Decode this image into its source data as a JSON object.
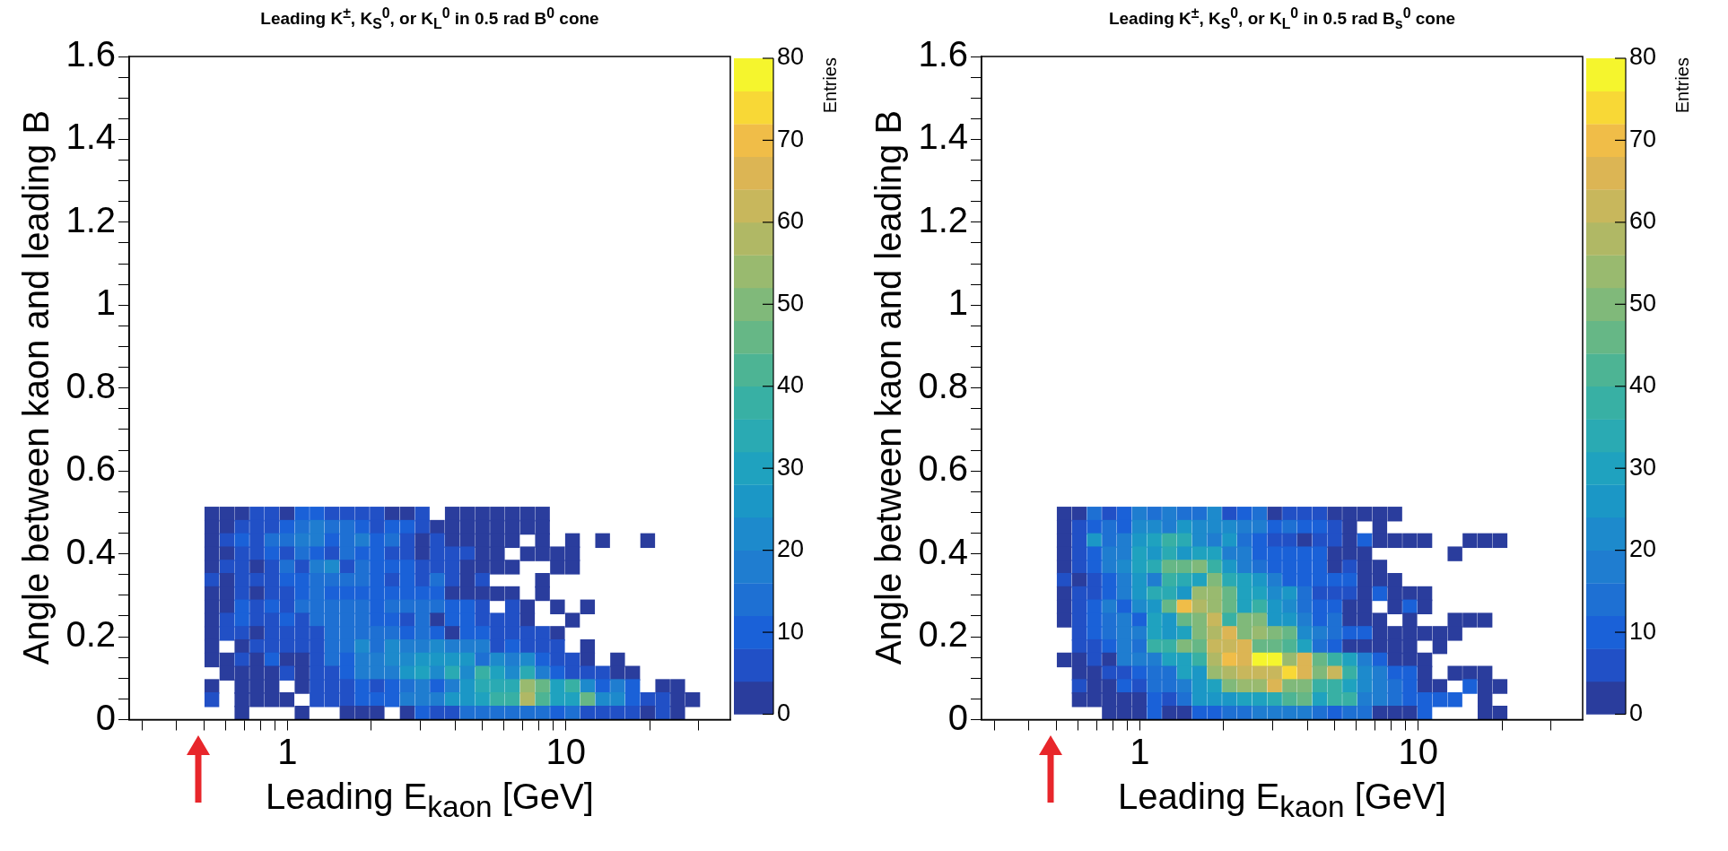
{
  "chart_data": [
    {
      "type": "scatter",
      "marker": "square",
      "title": "Leading K$^{±}$, K$_{S}$$^{0}$, or K$_{L}$$^{0}$ in 0.5 rad B$^{0}$ cone",
      "xlabel": "Leading E$_{kaon}$ [GeV]",
      "ylabel": "Angle between kaon and leading B",
      "clabel": "Entries",
      "log": "x",
      "xlim": [
        0.27,
        39
      ],
      "xticks": [
        {
          "value": 0.3,
          "label": null
        },
        {
          "value": 0.4,
          "label": null
        },
        {
          "value": 0.5,
          "label": null
        },
        {
          "value": 0.6,
          "label": null
        },
        {
          "value": 0.7,
          "label": null
        },
        {
          "value": 0.8,
          "label": null
        },
        {
          "value": 0.9,
          "label": null
        },
        {
          "value": 1,
          "label": "1"
        },
        {
          "value": 2,
          "label": null
        },
        {
          "value": 3,
          "label": null
        },
        {
          "value": 4,
          "label": null
        },
        {
          "value": 5,
          "label": null
        },
        {
          "value": 6,
          "label": null
        },
        {
          "value": 7,
          "label": null
        },
        {
          "value": 8,
          "label": null
        },
        {
          "value": 9,
          "label": null
        },
        {
          "value": 10,
          "label": "10"
        },
        {
          "value": 20,
          "label": null
        },
        {
          "value": 30,
          "label": null
        }
      ],
      "ylim": [
        0,
        1.6
      ],
      "yticks": [
        0,
        {
          "value": 0.05,
          "label": null
        },
        {
          "value": 0.1,
          "label": null
        },
        {
          "value": 0.15,
          "label": null
        },
        0.2,
        {
          "value": 0.25,
          "label": null
        },
        {
          "value": 0.3,
          "label": null
        },
        {
          "value": 0.35,
          "label": null
        },
        0.4,
        {
          "value": 0.45,
          "label": null
        },
        {
          "value": 0.5,
          "label": null
        },
        {
          "value": 0.55,
          "label": null
        },
        0.6,
        {
          "value": 0.65,
          "label": null
        },
        {
          "value": 0.7,
          "label": null
        },
        {
          "value": 0.75,
          "label": null
        },
        0.8,
        {
          "value": 0.85,
          "label": null
        },
        {
          "value": 0.9,
          "label": null
        },
        {
          "value": 0.95,
          "label": null
        },
        1,
        {
          "value": 1.05,
          "label": null
        },
        {
          "value": 1.1,
          "label": null
        },
        {
          "value": 1.15,
          "label": null
        },
        1.2,
        {
          "value": 1.25,
          "label": null
        },
        {
          "value": 1.3,
          "label": null
        },
        {
          "value": 1.35,
          "label": null
        },
        1.4,
        {
          "value": 1.45,
          "label": null
        },
        {
          "value": 1.5,
          "label": null
        },
        {
          "value": 1.55,
          "label": null
        },
        1.6
      ],
      "clim": [
        0,
        80
      ],
      "cticks": [
        0,
        10,
        20,
        30,
        40,
        50,
        60,
        70,
        80
      ],
      "x": [
        0.535,
        0.606,
        0.686,
        0.777,
        0.88,
        0.996,
        1.128,
        1.277,
        1.446,
        1.637,
        1.854,
        2.1,
        2.378,
        2.693,
        3.05,
        3.91,
        4.428,
        5.014,
        5.678,
        6.43,
        7.281,
        8.245,
        0.535,
        0.606,
        0.686,
        0.777,
        0.88,
        0.996,
        1.128,
        1.277,
        1.446,
        1.637,
        1.854,
        2.1,
        2.378,
        2.693,
        3.05,
        3.453,
        3.91,
        4.428,
        5.014,
        5.678,
        6.43,
        7.281,
        8.245,
        0.535,
        0.606,
        0.686,
        0.777,
        0.88,
        0.996,
        1.128,
        1.277,
        1.446,
        1.637,
        1.854,
        2.1,
        2.378,
        2.693,
        3.05,
        3.453,
        3.91,
        4.428,
        5.014,
        5.678,
        6.43,
        8.245,
        10.57,
        13.56,
        19.69,
        0.535,
        0.606,
        0.686,
        0.777,
        0.88,
        0.996,
        1.128,
        1.277,
        1.446,
        1.637,
        1.854,
        2.1,
        2.378,
        2.693,
        3.05,
        3.453,
        3.91,
        4.428,
        5.014,
        5.678,
        7.281,
        8.245,
        9.336,
        10.57,
        0.535,
        0.606,
        0.686,
        0.777,
        0.88,
        0.996,
        1.128,
        1.277,
        1.446,
        1.637,
        1.854,
        2.1,
        2.378,
        2.693,
        3.05,
        3.453,
        3.91,
        4.428,
        5.014,
        5.678,
        6.43,
        9.336,
        10.57,
        0.535,
        0.606,
        0.686,
        0.777,
        0.88,
        0.996,
        1.128,
        1.277,
        1.446,
        1.637,
        1.854,
        2.1,
        2.378,
        2.693,
        3.05,
        3.453,
        3.91,
        4.428,
        5.014,
        8.245,
        0.535,
        0.606,
        0.686,
        0.777,
        0.88,
        0.996,
        1.128,
        1.277,
        1.446,
        1.637,
        1.854,
        2.1,
        2.378,
        2.693,
        3.05,
        3.453,
        3.91,
        4.428,
        5.014,
        5.678,
        6.43,
        8.245,
        0.535,
        0.606,
        0.686,
        0.777,
        0.88,
        0.996,
        1.128,
        1.277,
        1.446,
        1.637,
        1.854,
        2.1,
        2.378,
        2.693,
        3.05,
        3.453,
        3.91,
        4.428,
        5.014,
        6.43,
        7.281,
        9.336,
        11.97,
        0.535,
        0.606,
        0.686,
        0.777,
        0.88,
        0.996,
        1.128,
        1.277,
        1.446,
        1.637,
        1.854,
        2.1,
        2.378,
        2.693,
        3.05,
        3.453,
        3.91,
        4.428,
        5.014,
        5.678,
        6.43,
        7.281,
        10.57,
        0.535,
        0.606,
        0.686,
        0.777,
        0.88,
        0.996,
        1.128,
        1.277,
        1.446,
        1.637,
        1.854,
        2.1,
        2.378,
        2.693,
        3.05,
        3.453,
        3.91,
        4.428,
        5.014,
        5.678,
        6.43,
        7.281,
        8.245,
        9.336,
        0.535,
        0.686,
        0.777,
        0.88,
        0.996,
        1.128,
        1.277,
        1.446,
        1.637,
        1.854,
        2.1,
        2.378,
        2.693,
        3.05,
        3.453,
        3.91,
        4.428,
        5.014,
        5.678,
        6.43,
        7.281,
        8.245,
        9.336,
        11.97,
        0.535,
        0.606,
        0.686,
        0.777,
        0.88,
        0.996,
        1.128,
        1.277,
        1.446,
        1.637,
        1.854,
        2.1,
        2.378,
        2.693,
        3.05,
        3.453,
        3.91,
        4.428,
        5.014,
        5.678,
        6.43,
        7.281,
        8.245,
        9.336,
        10.57,
        11.97,
        15.35,
        0.606,
        0.686,
        0.777,
        0.88,
        0.996,
        1.128,
        1.277,
        1.446,
        1.637,
        1.854,
        2.1,
        2.378,
        2.693,
        3.05,
        3.453,
        3.91,
        4.428,
        5.014,
        5.678,
        6.43,
        7.281,
        8.245,
        9.336,
        10.57,
        11.97,
        13.56,
        15.35,
        17.39,
        0.535,
        0.686,
        0.777,
        0.88,
        1.128,
        1.277,
        1.446,
        1.637,
        1.854,
        2.1,
        2.378,
        2.693,
        3.05,
        3.453,
        3.91,
        4.428,
        5.014,
        5.678,
        6.43,
        7.281,
        8.245,
        9.336,
        10.57,
        11.97,
        13.56,
        15.35,
        17.39,
        22.29,
        25.24,
        0.535,
        0.686,
        0.777,
        0.88,
        0.996,
        1.277,
        1.446,
        1.637,
        1.854,
        2.1,
        2.378,
        2.693,
        3.05,
        3.453,
        3.91,
        4.428,
        5.014,
        5.678,
        6.43,
        7.281,
        8.245,
        9.336,
        10.57,
        11.97,
        13.56,
        15.35,
        17.39,
        19.69,
        22.29,
        25.24,
        28.58,
        0.686,
        1.128,
        1.637,
        1.854,
        2.1,
        2.693,
        3.05,
        3.453,
        3.91,
        4.428,
        5.014,
        5.678,
        6.43,
        7.281,
        8.245,
        9.336,
        10.57,
        11.97,
        13.56,
        15.35,
        17.39,
        19.69,
        22.29,
        25.24
      ],
      "values": [
        0.496,
        0.496,
        0.496,
        0.496,
        0.496,
        0.496,
        0.496,
        0.496,
        0.496,
        0.496,
        0.496,
        0.496,
        0.496,
        0.496,
        0.496,
        0.496,
        0.496,
        0.496,
        0.496,
        0.496,
        0.496,
        0.496,
        0.464,
        0.464,
        0.464,
        0.464,
        0.464,
        0.464,
        0.464,
        0.464,
        0.464,
        0.464,
        0.464,
        0.464,
        0.464,
        0.464,
        0.464,
        0.464,
        0.464,
        0.464,
        0.464,
        0.464,
        0.464,
        0.464,
        0.464,
        0.432,
        0.432,
        0.432,
        0.432,
        0.432,
        0.432,
        0.432,
        0.432,
        0.432,
        0.432,
        0.432,
        0.432,
        0.432,
        0.432,
        0.432,
        0.432,
        0.432,
        0.432,
        0.432,
        0.432,
        0.432,
        0.432,
        0.432,
        0.432,
        0.432,
        0.4,
        0.4,
        0.4,
        0.4,
        0.4,
        0.4,
        0.4,
        0.4,
        0.4,
        0.4,
        0.4,
        0.4,
        0.4,
        0.4,
        0.4,
        0.4,
        0.4,
        0.4,
        0.4,
        0.4,
        0.4,
        0.4,
        0.4,
        0.4,
        0.368,
        0.368,
        0.368,
        0.368,
        0.368,
        0.368,
        0.368,
        0.368,
        0.368,
        0.368,
        0.368,
        0.368,
        0.368,
        0.368,
        0.368,
        0.368,
        0.368,
        0.368,
        0.368,
        0.368,
        0.368,
        0.368,
        0.368,
        0.336,
        0.336,
        0.336,
        0.336,
        0.336,
        0.336,
        0.336,
        0.336,
        0.336,
        0.336,
        0.336,
        0.336,
        0.336,
        0.336,
        0.336,
        0.336,
        0.336,
        0.336,
        0.336,
        0.336,
        0.304,
        0.304,
        0.304,
        0.304,
        0.304,
        0.304,
        0.304,
        0.304,
        0.304,
        0.304,
        0.304,
        0.304,
        0.304,
        0.304,
        0.304,
        0.304,
        0.304,
        0.304,
        0.304,
        0.304,
        0.304,
        0.304,
        0.272,
        0.272,
        0.272,
        0.272,
        0.272,
        0.272,
        0.272,
        0.272,
        0.272,
        0.272,
        0.272,
        0.272,
        0.272,
        0.272,
        0.272,
        0.272,
        0.272,
        0.272,
        0.272,
        0.272,
        0.272,
        0.272,
        0.272,
        0.24,
        0.24,
        0.24,
        0.24,
        0.24,
        0.24,
        0.24,
        0.24,
        0.24,
        0.24,
        0.24,
        0.24,
        0.24,
        0.24,
        0.24,
        0.24,
        0.24,
        0.24,
        0.24,
        0.24,
        0.24,
        0.24,
        0.24,
        0.208,
        0.208,
        0.208,
        0.208,
        0.208,
        0.208,
        0.208,
        0.208,
        0.208,
        0.208,
        0.208,
        0.208,
        0.208,
        0.208,
        0.208,
        0.208,
        0.208,
        0.208,
        0.208,
        0.208,
        0.208,
        0.208,
        0.208,
        0.208,
        0.176,
        0.176,
        0.176,
        0.176,
        0.176,
        0.176,
        0.176,
        0.176,
        0.176,
        0.176,
        0.176,
        0.176,
        0.176,
        0.176,
        0.176,
        0.176,
        0.176,
        0.176,
        0.176,
        0.176,
        0.176,
        0.176,
        0.176,
        0.176,
        0.144,
        0.144,
        0.144,
        0.144,
        0.144,
        0.144,
        0.144,
        0.144,
        0.144,
        0.144,
        0.144,
        0.144,
        0.144,
        0.144,
        0.144,
        0.144,
        0.144,
        0.144,
        0.144,
        0.144,
        0.144,
        0.144,
        0.144,
        0.144,
        0.144,
        0.144,
        0.144,
        0.112,
        0.112,
        0.112,
        0.112,
        0.112,
        0.112,
        0.112,
        0.112,
        0.112,
        0.112,
        0.112,
        0.112,
        0.112,
        0.112,
        0.112,
        0.112,
        0.112,
        0.112,
        0.112,
        0.112,
        0.112,
        0.112,
        0.112,
        0.112,
        0.112,
        0.112,
        0.112,
        0.112,
        0.08,
        0.08,
        0.08,
        0.08,
        0.08,
        0.08,
        0.08,
        0.08,
        0.08,
        0.08,
        0.08,
        0.08,
        0.08,
        0.08,
        0.08,
        0.08,
        0.08,
        0.08,
        0.08,
        0.08,
        0.08,
        0.08,
        0.08,
        0.08,
        0.08,
        0.08,
        0.08,
        0.08,
        0.08,
        0.048,
        0.048,
        0.048,
        0.048,
        0.048,
        0.048,
        0.048,
        0.048,
        0.048,
        0.048,
        0.048,
        0.048,
        0.048,
        0.048,
        0.048,
        0.048,
        0.048,
        0.048,
        0.048,
        0.048,
        0.048,
        0.048,
        0.048,
        0.048,
        0.048,
        0.048,
        0.048,
        0.048,
        0.048,
        0.048,
        0.048,
        0.016,
        0.016,
        0.016,
        0.016,
        0.016,
        0.016,
        0.016,
        0.016,
        0.016,
        0.016,
        0.016,
        0.016,
        0.016,
        0.016,
        0.016,
        0.016,
        0.016,
        0.016,
        0.016,
        0.016,
        0.016,
        0.016,
        0.016,
        0.016
      ],
      "cvalues": [
        2,
        2,
        2,
        6,
        6,
        2,
        11,
        11,
        7,
        7,
        7,
        7,
        2,
        2,
        6,
        2,
        2,
        2,
        2,
        2,
        2,
        2,
        2,
        2,
        6,
        6,
        6,
        10,
        14,
        17,
        14,
        14,
        10,
        6,
        11,
        11,
        6,
        2,
        2,
        2,
        2,
        2,
        2,
        2,
        2,
        2,
        6,
        10,
        6,
        15,
        15,
        17,
        17,
        10,
        15,
        18,
        10,
        14,
        6,
        2,
        6,
        2,
        2,
        2,
        2,
        2,
        2,
        2,
        2,
        2,
        2,
        2,
        6,
        6,
        10,
        6,
        14,
        10,
        6,
        14,
        10,
        10,
        6,
        6,
        2,
        6,
        6,
        6,
        2,
        2,
        2,
        2,
        2,
        2,
        2,
        6,
        6,
        2,
        6,
        14,
        6,
        18,
        22,
        6,
        15,
        10,
        10,
        10,
        6,
        6,
        6,
        2,
        2,
        2,
        2,
        2,
        2,
        6,
        2,
        6,
        6,
        6,
        10,
        10,
        13,
        13,
        14,
        14,
        10,
        6,
        10,
        6,
        14,
        6,
        2,
        6,
        2,
        2,
        2,
        6,
        2,
        6,
        6,
        10,
        14,
        8,
        8,
        10,
        10,
        10,
        10,
        10,
        10,
        2,
        2,
        2,
        2,
        2,
        2,
        2,
        2,
        10,
        6,
        10,
        6,
        14,
        14,
        15,
        15,
        15,
        10,
        13,
        13,
        13,
        13,
        10,
        8,
        6,
        6,
        2,
        2,
        2,
        2,
        6,
        10,
        6,
        6,
        10,
        6,
        14,
        15,
        15,
        15,
        11,
        11,
        6,
        14,
        2,
        10,
        10,
        6,
        6,
        6,
        2,
        2,
        2,
        6,
        6,
        2,
        6,
        6,
        6,
        6,
        14,
        14,
        15,
        15,
        15,
        11,
        14,
        10,
        2,
        8,
        8,
        6,
        6,
        6,
        6,
        2,
        2,
        2,
        6,
        6,
        6,
        6,
        6,
        15,
        15,
        22,
        15,
        20,
        17,
        17,
        20,
        17,
        16,
        16,
        6,
        10,
        6,
        6,
        6,
        2,
        2,
        2,
        6,
        2,
        10,
        2,
        2,
        6,
        14,
        10,
        16,
        16,
        20,
        20,
        27,
        27,
        27,
        25,
        14,
        22,
        19,
        20,
        11,
        6,
        6,
        2,
        2,
        2,
        2,
        2,
        2,
        6,
        2,
        6,
        6,
        10,
        16,
        16,
        16,
        24,
        28,
        20,
        34,
        20,
        38,
        30,
        20,
        32,
        19,
        10,
        6,
        6,
        6,
        2,
        2,
        2,
        2,
        2,
        2,
        2,
        6,
        6,
        6,
        10,
        7,
        11,
        14,
        18,
        10,
        18,
        24,
        34,
        34,
        34,
        52,
        47,
        28,
        38,
        20,
        8,
        16,
        8,
        2,
        2,
        6,
        2,
        2,
        2,
        2,
        6,
        6,
        6,
        8,
        10,
        8,
        16,
        16,
        18,
        24,
        24,
        28,
        36,
        38,
        58,
        42,
        30,
        28,
        46,
        22,
        22,
        10,
        6,
        6,
        2,
        2,
        2,
        2,
        2,
        2,
        2,
        2,
        8,
        6,
        6,
        12,
        12,
        13,
        15,
        15,
        12,
        10,
        12,
        6,
        6,
        6,
        6,
        2,
        6,
        2
      ]
    },
    {
      "type": "scatter",
      "marker": "square",
      "title": "Leading K$^{±}$, K$_{S}$$^{0}$, or K$_{L}$$^{0}$ in 0.5 rad B$_{s}$$^{0}$ cone",
      "xlabel": "Leading E$_{kaon}$ [GeV]",
      "ylabel": "Angle between kaon and leading B",
      "clabel": "Entries",
      "log": "x",
      "xlim": [
        0.27,
        39
      ],
      "xticks": [
        {
          "value": 0.3,
          "label": null
        },
        {
          "value": 0.4,
          "label": null
        },
        {
          "value": 0.5,
          "label": null
        },
        {
          "value": 0.6,
          "label": null
        },
        {
          "value": 0.7,
          "label": null
        },
        {
          "value": 0.8,
          "label": null
        },
        {
          "value": 0.9,
          "label": null
        },
        {
          "value": 1,
          "label": "1"
        },
        {
          "value": 2,
          "label": null
        },
        {
          "value": 3,
          "label": null
        },
        {
          "value": 4,
          "label": null
        },
        {
          "value": 5,
          "label": null
        },
        {
          "value": 6,
          "label": null
        },
        {
          "value": 7,
          "label": null
        },
        {
          "value": 8,
          "label": null
        },
        {
          "value": 9,
          "label": null
        },
        {
          "value": 10,
          "label": "10"
        },
        {
          "value": 20,
          "label": null
        },
        {
          "value": 30,
          "label": null
        }
      ],
      "ylim": [
        0,
        1.6
      ],
      "yticks": [
        0,
        {
          "value": 0.05,
          "label": null
        },
        {
          "value": 0.1,
          "label": null
        },
        {
          "value": 0.15,
          "label": null
        },
        0.2,
        {
          "value": 0.25,
          "label": null
        },
        {
          "value": 0.3,
          "label": null
        },
        {
          "value": 0.35,
          "label": null
        },
        0.4,
        {
          "value": 0.45,
          "label": null
        },
        {
          "value": 0.5,
          "label": null
        },
        {
          "value": 0.55,
          "label": null
        },
        0.6,
        {
          "value": 0.65,
          "label": null
        },
        {
          "value": 0.7,
          "label": null
        },
        {
          "value": 0.75,
          "label": null
        },
        0.8,
        {
          "value": 0.85,
          "label": null
        },
        {
          "value": 0.9,
          "label": null
        },
        {
          "value": 0.95,
          "label": null
        },
        1,
        {
          "value": 1.05,
          "label": null
        },
        {
          "value": 1.1,
          "label": null
        },
        {
          "value": 1.15,
          "label": null
        },
        1.2,
        {
          "value": 1.25,
          "label": null
        },
        {
          "value": 1.3,
          "label": null
        },
        {
          "value": 1.35,
          "label": null
        },
        1.4,
        {
          "value": 1.45,
          "label": null
        },
        {
          "value": 1.5,
          "label": null
        },
        {
          "value": 1.55,
          "label": null
        },
        1.6
      ],
      "clim": [
        0,
        80
      ],
      "cticks": [
        0,
        10,
        20,
        30,
        40,
        50,
        60,
        70,
        80
      ],
      "x": [
        0.535,
        0.606,
        0.686,
        0.777,
        0.88,
        0.996,
        1.128,
        1.277,
        1.446,
        1.637,
        1.854,
        2.1,
        2.378,
        2.693,
        3.05,
        3.453,
        3.91,
        4.428,
        5.014,
        5.678,
        6.43,
        7.281,
        8.245,
        0.535,
        0.606,
        0.686,
        0.777,
        0.88,
        0.996,
        1.128,
        1.277,
        1.446,
        1.637,
        1.854,
        2.1,
        2.378,
        2.693,
        3.05,
        3.453,
        3.91,
        4.428,
        5.014,
        5.678,
        7.281,
        0.535,
        0.606,
        0.686,
        0.777,
        0.88,
        0.996,
        1.128,
        1.277,
        1.446,
        1.637,
        1.854,
        2.1,
        2.378,
        2.693,
        3.05,
        3.453,
        3.91,
        4.428,
        5.014,
        5.678,
        6.43,
        7.281,
        8.245,
        9.336,
        10.57,
        15.35,
        17.39,
        19.69,
        0.535,
        0.606,
        0.686,
        0.777,
        0.88,
        0.996,
        1.128,
        1.277,
        1.446,
        1.637,
        1.854,
        2.1,
        2.378,
        2.693,
        3.05,
        3.453,
        3.91,
        4.428,
        5.014,
        5.678,
        6.43,
        13.56,
        0.535,
        0.606,
        0.686,
        0.777,
        0.88,
        0.996,
        1.128,
        1.277,
        1.446,
        1.637,
        1.854,
        2.1,
        2.378,
        2.693,
        3.05,
        3.453,
        3.91,
        4.428,
        5.014,
        5.678,
        6.43,
        7.281,
        0.535,
        0.606,
        0.686,
        0.777,
        0.88,
        0.996,
        1.128,
        1.277,
        1.446,
        1.637,
        1.854,
        2.1,
        2.378,
        2.693,
        3.05,
        3.453,
        3.91,
        4.428,
        5.014,
        5.678,
        6.43,
        7.281,
        8.245,
        0.535,
        0.606,
        0.686,
        0.777,
        0.88,
        0.996,
        1.128,
        1.277,
        1.446,
        1.637,
        1.854,
        2.1,
        2.378,
        2.693,
        3.05,
        3.453,
        3.91,
        4.428,
        5.014,
        5.678,
        6.43,
        7.281,
        8.245,
        9.336,
        10.57,
        0.535,
        0.606,
        0.686,
        0.777,
        0.88,
        0.996,
        1.128,
        1.277,
        1.446,
        1.637,
        1.854,
        2.1,
        2.378,
        2.693,
        3.05,
        3.453,
        3.91,
        4.428,
        5.014,
        5.678,
        6.43,
        8.245,
        9.336,
        10.57,
        0.535,
        0.606,
        0.686,
        0.777,
        0.88,
        0.996,
        1.128,
        1.277,
        1.446,
        1.637,
        1.854,
        2.1,
        2.378,
        2.693,
        3.05,
        3.453,
        3.91,
        4.428,
        5.014,
        5.678,
        6.43,
        7.281,
        9.336,
        13.56,
        15.35,
        17.39,
        0.606,
        0.686,
        0.777,
        0.88,
        0.996,
        1.128,
        1.277,
        1.446,
        1.637,
        1.854,
        2.1,
        2.378,
        2.693,
        3.05,
        3.453,
        3.91,
        4.428,
        5.014,
        5.678,
        6.43,
        7.281,
        8.245,
        9.336,
        10.57,
        11.97,
        13.56,
        0.606,
        0.686,
        0.777,
        0.88,
        0.996,
        1.128,
        1.277,
        1.446,
        1.637,
        1.854,
        2.1,
        2.378,
        2.693,
        3.05,
        3.453,
        3.91,
        4.428,
        5.014,
        5.678,
        6.43,
        7.281,
        8.245,
        9.336,
        11.97,
        0.535,
        0.606,
        0.686,
        0.777,
        0.88,
        0.996,
        1.128,
        1.277,
        1.446,
        1.637,
        1.854,
        2.1,
        2.378,
        2.693,
        3.05,
        3.453,
        3.91,
        4.428,
        5.014,
        5.678,
        6.43,
        7.281,
        8.245,
        9.336,
        10.57,
        0.606,
        0.686,
        0.777,
        0.88,
        0.996,
        1.128,
        1.277,
        1.446,
        1.637,
        1.854,
        2.1,
        2.378,
        2.693,
        3.05,
        3.453,
        3.91,
        4.428,
        5.014,
        5.678,
        6.43,
        7.281,
        8.245,
        9.336,
        10.57,
        13.56,
        15.35,
        17.39,
        0.606,
        0.686,
        0.777,
        0.88,
        0.996,
        1.128,
        1.277,
        1.446,
        1.637,
        1.854,
        2.1,
        2.378,
        2.693,
        3.05,
        3.453,
        3.91,
        4.428,
        5.014,
        5.678,
        6.43,
        7.281,
        8.245,
        9.336,
        10.57,
        11.97,
        15.35,
        17.39,
        19.69,
        0.606,
        0.686,
        0.777,
        0.88,
        0.996,
        1.128,
        1.277,
        1.446,
        1.637,
        1.854,
        2.1,
        2.378,
        2.693,
        3.05,
        3.453,
        3.91,
        4.428,
        5.014,
        5.678,
        6.43,
        7.281,
        8.245,
        9.336,
        10.57,
        11.97,
        13.56,
        17.39,
        0.777,
        0.88,
        0.996,
        1.128,
        1.277,
        1.446,
        1.637,
        1.854,
        2.1,
        2.378,
        2.693,
        3.05,
        3.453,
        3.91,
        4.428,
        5.014,
        5.678,
        6.43,
        7.281,
        8.245,
        9.336,
        10.57,
        17.39,
        19.69
      ],
      "values": [
        0.496,
        0.496,
        0.496,
        0.496,
        0.496,
        0.496,
        0.496,
        0.496,
        0.496,
        0.496,
        0.496,
        0.496,
        0.496,
        0.496,
        0.496,
        0.496,
        0.496,
        0.496,
        0.496,
        0.496,
        0.496,
        0.496,
        0.496,
        0.464,
        0.464,
        0.464,
        0.464,
        0.464,
        0.464,
        0.464,
        0.464,
        0.464,
        0.464,
        0.464,
        0.464,
        0.464,
        0.464,
        0.464,
        0.464,
        0.464,
        0.464,
        0.464,
        0.464,
        0.464,
        0.432,
        0.432,
        0.432,
        0.432,
        0.432,
        0.432,
        0.432,
        0.432,
        0.432,
        0.432,
        0.432,
        0.432,
        0.432,
        0.432,
        0.432,
        0.432,
        0.432,
        0.432,
        0.432,
        0.432,
        0.432,
        0.432,
        0.432,
        0.432,
        0.432,
        0.432,
        0.432,
        0.432,
        0.4,
        0.4,
        0.4,
        0.4,
        0.4,
        0.4,
        0.4,
        0.4,
        0.4,
        0.4,
        0.4,
        0.4,
        0.4,
        0.4,
        0.4,
        0.4,
        0.4,
        0.4,
        0.4,
        0.4,
        0.4,
        0.4,
        0.368,
        0.368,
        0.368,
        0.368,
        0.368,
        0.368,
        0.368,
        0.368,
        0.368,
        0.368,
        0.368,
        0.368,
        0.368,
        0.368,
        0.368,
        0.368,
        0.368,
        0.368,
        0.368,
        0.368,
        0.368,
        0.368,
        0.336,
        0.336,
        0.336,
        0.336,
        0.336,
        0.336,
        0.336,
        0.336,
        0.336,
        0.336,
        0.336,
        0.336,
        0.336,
        0.336,
        0.336,
        0.336,
        0.336,
        0.336,
        0.336,
        0.336,
        0.336,
        0.336,
        0.336,
        0.304,
        0.304,
        0.304,
        0.304,
        0.304,
        0.304,
        0.304,
        0.304,
        0.304,
        0.304,
        0.304,
        0.304,
        0.304,
        0.304,
        0.304,
        0.304,
        0.304,
        0.304,
        0.304,
        0.304,
        0.304,
        0.304,
        0.304,
        0.304,
        0.304,
        0.272,
        0.272,
        0.272,
        0.272,
        0.272,
        0.272,
        0.272,
        0.272,
        0.272,
        0.272,
        0.272,
        0.272,
        0.272,
        0.272,
        0.272,
        0.272,
        0.272,
        0.272,
        0.272,
        0.272,
        0.272,
        0.272,
        0.272,
        0.272,
        0.24,
        0.24,
        0.24,
        0.24,
        0.24,
        0.24,
        0.24,
        0.24,
        0.24,
        0.24,
        0.24,
        0.24,
        0.24,
        0.24,
        0.24,
        0.24,
        0.24,
        0.24,
        0.24,
        0.24,
        0.24,
        0.24,
        0.24,
        0.24,
        0.24,
        0.24,
        0.208,
        0.208,
        0.208,
        0.208,
        0.208,
        0.208,
        0.208,
        0.208,
        0.208,
        0.208,
        0.208,
        0.208,
        0.208,
        0.208,
        0.208,
        0.208,
        0.208,
        0.208,
        0.208,
        0.208,
        0.208,
        0.208,
        0.208,
        0.208,
        0.208,
        0.208,
        0.176,
        0.176,
        0.176,
        0.176,
        0.176,
        0.176,
        0.176,
        0.176,
        0.176,
        0.176,
        0.176,
        0.176,
        0.176,
        0.176,
        0.176,
        0.176,
        0.176,
        0.176,
        0.176,
        0.176,
        0.176,
        0.176,
        0.176,
        0.176,
        0.144,
        0.144,
        0.144,
        0.144,
        0.144,
        0.144,
        0.144,
        0.144,
        0.144,
        0.144,
        0.144,
        0.144,
        0.144,
        0.144,
        0.144,
        0.144,
        0.144,
        0.144,
        0.144,
        0.144,
        0.144,
        0.144,
        0.144,
        0.144,
        0.144,
        0.112,
        0.112,
        0.112,
        0.112,
        0.112,
        0.112,
        0.112,
        0.112,
        0.112,
        0.112,
        0.112,
        0.112,
        0.112,
        0.112,
        0.112,
        0.112,
        0.112,
        0.112,
        0.112,
        0.112,
        0.112,
        0.112,
        0.112,
        0.112,
        0.112,
        0.112,
        0.112,
        0.08,
        0.08,
        0.08,
        0.08,
        0.08,
        0.08,
        0.08,
        0.08,
        0.08,
        0.08,
        0.08,
        0.08,
        0.08,
        0.08,
        0.08,
        0.08,
        0.08,
        0.08,
        0.08,
        0.08,
        0.08,
        0.08,
        0.08,
        0.08,
        0.08,
        0.08,
        0.08,
        0.08,
        0.048,
        0.048,
        0.048,
        0.048,
        0.048,
        0.048,
        0.048,
        0.048,
        0.048,
        0.048,
        0.048,
        0.048,
        0.048,
        0.048,
        0.048,
        0.048,
        0.048,
        0.048,
        0.048,
        0.048,
        0.048,
        0.048,
        0.048,
        0.048,
        0.048,
        0.048,
        0.048,
        0.016,
        0.016,
        0.016,
        0.016,
        0.016,
        0.016,
        0.016,
        0.016,
        0.016,
        0.016,
        0.016,
        0.016,
        0.016,
        0.016,
        0.016,
        0.016,
        0.016,
        0.016,
        0.016,
        0.016,
        0.016,
        0.016,
        0.016,
        0.016
      ],
      "cvalues": [
        2,
        2,
        12,
        6,
        11,
        16,
        12,
        17,
        12,
        12,
        22,
        6,
        11,
        15,
        2,
        6,
        6,
        6,
        2,
        2,
        2,
        2,
        2,
        2,
        6,
        11,
        15,
        8,
        22,
        22,
        18,
        27,
        22,
        22,
        22,
        18,
        17,
        10,
        14,
        8,
        8,
        6,
        2,
        2,
        2,
        6,
        24,
        12,
        16,
        24,
        28,
        36,
        32,
        20,
        17,
        24,
        12,
        10,
        6,
        6,
        2,
        6,
        6,
        2,
        8,
        2,
        2,
        2,
        2,
        2,
        2,
        2,
        2,
        6,
        10,
        16,
        16,
        28,
        24,
        32,
        26,
        28,
        30,
        18,
        16,
        11,
        11,
        8,
        8,
        8,
        2,
        2,
        2,
        2,
        2,
        6,
        10,
        17,
        20,
        28,
        32,
        45,
        45,
        48,
        38,
        24,
        18,
        12,
        8,
        8,
        8,
        8,
        2,
        6,
        2,
        2,
        6,
        2,
        6,
        10,
        16,
        24,
        18,
        36,
        34,
        30,
        48,
        34,
        28,
        26,
        18,
        10,
        10,
        10,
        10,
        10,
        2,
        2,
        2,
        2,
        6,
        6,
        10,
        18,
        24,
        34,
        34,
        26,
        52,
        52,
        46,
        28,
        28,
        20,
        24,
        12,
        6,
        6,
        6,
        2,
        8,
        2,
        2,
        2,
        2,
        6,
        8,
        16,
        10,
        20,
        24,
        46,
        70,
        56,
        52,
        46,
        30,
        36,
        26,
        20,
        14,
        10,
        8,
        2,
        2,
        2,
        8,
        2,
        2,
        6,
        10,
        14,
        16,
        10,
        28,
        26,
        44,
        50,
        60,
        36,
        50,
        50,
        26,
        26,
        16,
        10,
        12,
        2,
        2,
        2,
        2,
        2,
        2,
        2,
        6,
        8,
        12,
        16,
        18,
        28,
        24,
        30,
        50,
        58,
        64,
        50,
        55,
        50,
        46,
        20,
        16,
        14,
        10,
        8,
        2,
        2,
        2,
        2,
        2,
        2,
        6,
        6,
        8,
        16,
        14,
        36,
        38,
        50,
        46,
        62,
        62,
        64,
        46,
        44,
        40,
        28,
        14,
        8,
        2,
        2,
        2,
        2,
        2,
        2,
        2,
        2,
        6,
        2,
        16,
        16,
        16,
        28,
        30,
        36,
        56,
        70,
        66,
        78,
        78,
        54,
        66,
        46,
        38,
        28,
        18,
        10,
        2,
        2,
        2,
        2,
        2,
        6,
        6,
        10,
        14,
        14,
        28,
        26,
        52,
        56,
        62,
        62,
        62,
        74,
        66,
        50,
        62,
        36,
        20,
        16,
        8,
        8,
        2,
        2,
        2,
        2,
        6,
        2,
        2,
        10,
        6,
        12,
        14,
        18,
        26,
        28,
        50,
        54,
        54,
        66,
        50,
        50,
        38,
        36,
        30,
        20,
        18,
        14,
        10,
        2,
        2,
        8,
        2,
        2,
        2,
        2,
        2,
        2,
        2,
        8,
        6,
        12,
        24,
        24,
        26,
        28,
        30,
        34,
        42,
        46,
        30,
        38,
        36,
        16,
        16,
        12,
        10,
        8,
        8,
        8,
        2,
        2,
        2,
        2,
        8,
        2,
        2,
        10,
        8,
        12,
        14,
        16,
        16,
        16,
        18,
        14,
        10,
        14,
        12,
        2,
        2,
        2,
        10,
        2,
        2
      ]
    }
  ]
}
